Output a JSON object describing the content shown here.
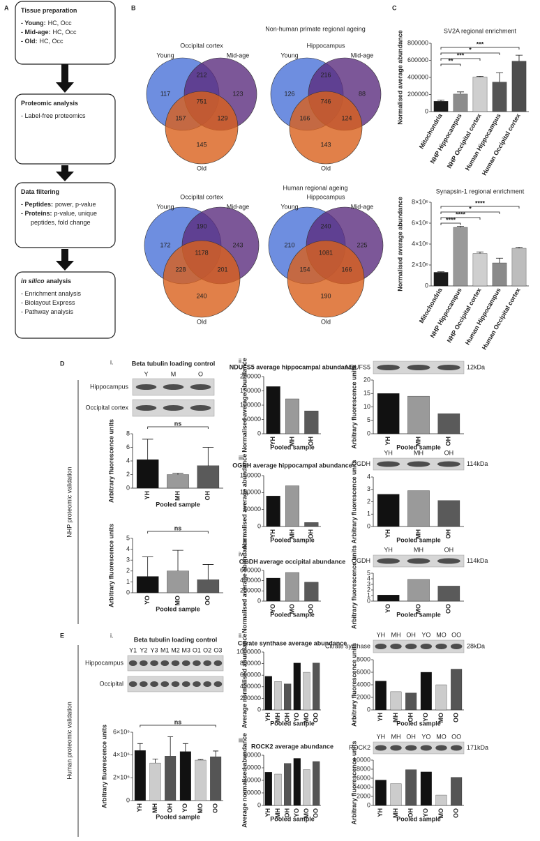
{
  "panel_a": {
    "letter": "A",
    "boxes": [
      {
        "title": "Tissue preparation",
        "items": [
          {
            "label": "- Young:",
            "lines": [
              "HC, Occ"
            ]
          },
          {
            "label": "- Mid-age:",
            "lines": [
              "HC, Occ"
            ]
          },
          {
            "label": "- Old:",
            "lines": [
              "HC, Occ"
            ]
          }
        ]
      },
      {
        "title": "Proteomic analysis",
        "items": [
          {
            "lines": [
              "- Label-free proteomics"
            ]
          }
        ]
      },
      {
        "title": "Data filtering",
        "items": [
          {
            "label": "- Peptides:",
            "lines": [
              "power, p-value"
            ]
          },
          {
            "label": "- Proteins:",
            "lines": [
              "p-value, unique",
              "peptides, fold change"
            ]
          }
        ]
      },
      {
        "title_italic": "in silico",
        "title": "analysis",
        "items": [
          {
            "lines": [
              "- Enrichment analysis"
            ]
          },
          {
            "lines": [
              "- Biolayout Express"
            ]
          },
          {
            "lines": [
              "- Pathway analysis"
            ]
          }
        ]
      }
    ]
  },
  "panel_b": {
    "letter": "B",
    "sections": [
      {
        "title": "Non-human primate regional ageing",
        "venns": [
          {
            "title": "Occipital cortex",
            "set_labels": [
              "Young",
              "Mid-age",
              "Old"
            ],
            "counts": {
              "young": 117,
              "young_mid": 212,
              "mid": 123,
              "young_mid_old": 751,
              "young_old": 157,
              "mid_old": 129,
              "old": 145
            }
          },
          {
            "title": "Hippocampus",
            "set_labels": [
              "Young",
              "Mid-age",
              "Old"
            ],
            "counts": {
              "young": 126,
              "young_mid": 216,
              "mid": 88,
              "young_mid_old": 746,
              "young_old": 166,
              "mid_old": 124,
              "old": 143
            }
          }
        ]
      },
      {
        "title": "Human regional ageing",
        "venns": [
          {
            "title": "Occipital cortex",
            "set_labels": [
              "Young",
              "Mid-age",
              "Old"
            ],
            "counts": {
              "young": 172,
              "young_mid": 190,
              "mid": 243,
              "young_mid_old": 1178,
              "young_old": 228,
              "mid_old": 201,
              "old": 240
            }
          },
          {
            "title": "Hippocampus",
            "set_labels": [
              "Young",
              "Mid-age",
              "Old"
            ],
            "counts": {
              "young": 210,
              "young_mid": 240,
              "mid": 225,
              "young_mid_old": 1081,
              "young_old": 154,
              "mid_old": 166,
              "old": 190
            }
          }
        ]
      }
    ]
  },
  "panel_c": {
    "letter": "C"
  },
  "panel_d": {
    "letter": "D",
    "side_label": "NHP proteomic validation",
    "parts": [
      {
        "numeral": "i.",
        "blot": {
          "title": "Beta tubulin loading control",
          "lanes": [
            "Y",
            "M",
            "O"
          ],
          "rows": [
            "Hippocampus",
            "Occipital cortex"
          ]
        }
      },
      {
        "numeral": "ii.",
        "blot": {
          "protein": "NDUFS5",
          "size": "12kDa"
        }
      },
      {
        "numeral": "iii.",
        "blot": {
          "protein": "OGDH",
          "size": "114kDa",
          "lanes": [
            "YH",
            "MH",
            "OH"
          ]
        }
      },
      {
        "numeral": "iv.",
        "blot": {
          "protein": "OGDH",
          "size": "114kDa",
          "lanes": [
            "YH",
            "MH",
            "OH"
          ]
        }
      }
    ]
  },
  "panel_e": {
    "letter": "E",
    "side_label": "Human proteomic validation",
    "parts": [
      {
        "numeral": "i.",
        "blot": {
          "title": "Beta tubulin loading control",
          "lanes": [
            "Y1",
            "Y2",
            "Y3",
            "M1",
            "M2",
            "M3",
            "O1",
            "O2",
            "O3"
          ],
          "rows": [
            "Hippocampus",
            "Occipital"
          ]
        }
      },
      {
        "numeral": "ii.",
        "blot": {
          "protein": "Citrate synthase",
          "size": "28kDa",
          "lanes": [
            "YH",
            "MH",
            "OH",
            "YO",
            "MO",
            "OO"
          ]
        }
      },
      {
        "numeral": "iii.",
        "blot": {
          "protein": "ROCK2",
          "size": "171kDa",
          "lanes": [
            "YH",
            "MH",
            "OH",
            "YO",
            "MO",
            "OO"
          ]
        }
      }
    ]
  },
  "chart_data": [
    {
      "type": "bar",
      "title": "SV2A regional enrichment",
      "ylabel": "Normalised average abundance",
      "categories": [
        "Mitochondria",
        "NHP Hippocampus",
        "NHP Occipital cortex",
        "Human Hippocampus",
        "Human Occipital cortex"
      ],
      "values": [
        120000,
        205000,
        405000,
        345000,
        590000
      ],
      "errors": [
        15000,
        25000,
        8000,
        110000,
        70000
      ],
      "colors": [
        "#1a1a1a",
        "#8c8c8c",
        "#cfcfcf",
        "#555555",
        "#4d4d4d"
      ],
      "ylim": [
        0,
        800000
      ],
      "yticks": [
        0,
        200000,
        400000,
        600000,
        800000
      ],
      "brackets": [
        {
          "label": "**",
          "categories": [
            "Mitochondria",
            "NHP Hippocampus"
          ]
        },
        {
          "label": "***",
          "categories": [
            "Mitochondria",
            "NHP Occipital cortex"
          ]
        },
        {
          "label": "*",
          "categories": [
            "Mitochondria",
            "Human Hippocampus"
          ]
        },
        {
          "label": "***",
          "categories": [
            "Mitochondria",
            "Human Occipital cortex"
          ]
        }
      ]
    },
    {
      "type": "bar",
      "title": "Synapsin-1 regional enrichment",
      "ylabel": "Normalised average abundance",
      "categories": [
        "Mitochondria",
        "NHP Hippocampus",
        "NHP Occipital cortex",
        "Human Hippocampus",
        "Human Occipital cortex"
      ],
      "values": [
        1300000,
        5600000,
        3100000,
        2200000,
        3600000
      ],
      "errors": [
        50000,
        100000,
        150000,
        450000,
        100000
      ],
      "colors": [
        "#1a1a1a",
        "#999999",
        "#cfcfcf",
        "#8a8a8a",
        "#bdbdbd"
      ],
      "ylim": [
        0,
        8000000
      ],
      "yticks": [
        0,
        {
          "value": 2000000,
          "label": "2×10⁶"
        },
        {
          "value": 4000000,
          "label": "4×10⁶"
        },
        {
          "value": 6000000,
          "label": "6×10⁶"
        },
        {
          "value": 8000000,
          "label": "8×10⁶"
        }
      ],
      "brackets": [
        {
          "label": "****",
          "categories": [
            "Mitochondria",
            "NHP Hippocampus"
          ]
        },
        {
          "label": "****",
          "categories": [
            "Mitochondria",
            "NHP Occipital cortex"
          ]
        },
        {
          "label": "*",
          "categories": [
            "Mitochondria",
            "Human Hippocampus"
          ]
        },
        {
          "label": "****",
          "categories": [
            "Mitochondria",
            "Human Occipital cortex"
          ]
        }
      ]
    },
    {
      "type": "bar",
      "ylabel": "Arbitrary fluorescence units",
      "xlabel": "Pooled sample",
      "categories": [
        "YH",
        "MH",
        "OH"
      ],
      "values": [
        4.2,
        2.0,
        3.3
      ],
      "errors": [
        3.0,
        0.2,
        2.7
      ],
      "colors": [
        "#111111",
        "#9a9a9a",
        "#5a5a5a"
      ],
      "ylim": [
        0,
        8
      ],
      "yticks": [
        0,
        2,
        4,
        6,
        8
      ],
      "brackets": [
        {
          "label": "ns",
          "categories": [
            "YH",
            "OH"
          ]
        }
      ]
    },
    {
      "type": "bar",
      "ylabel": "Arbitrary fluorescence units",
      "xlabel": "Pooled sample",
      "categories": [
        "YO",
        "MO",
        "OO"
      ],
      "values": [
        1.5,
        2.0,
        1.2
      ],
      "errors": [
        1.8,
        1.9,
        1.4
      ],
      "colors": [
        "#111111",
        "#9a9a9a",
        "#5a5a5a"
      ],
      "ylim": [
        0,
        5
      ],
      "yticks": [
        0,
        1,
        2,
        3,
        4,
        5
      ],
      "brackets": [
        {
          "label": "ns",
          "categories": [
            "YO",
            "OO"
          ]
        }
      ]
    },
    {
      "type": "bar",
      "title": "NDUFS5 average hippocampal abundance",
      "ylabel": "Normalised average abundance",
      "xlabel": "Pooled sample",
      "categories": [
        "YH",
        "MH",
        "OH"
      ],
      "values": [
        165000,
        122000,
        80000
      ],
      "colors": [
        "#111111",
        "#9a9a9a",
        "#5a5a5a"
      ],
      "ylim": [
        0,
        200000
      ],
      "yticks": [
        0,
        50000,
        100000,
        150000,
        200000
      ]
    },
    {
      "type": "bar",
      "ylabel": "Arbitrary fluorescence units",
      "xlabel": "Pooled sample",
      "categories": [
        "YH",
        "MH",
        "OH"
      ],
      "values": [
        15,
        14,
        7.5
      ],
      "colors": [
        "#111111",
        "#9a9a9a",
        "#5a5a5a"
      ],
      "ylim": [
        0,
        20
      ],
      "yticks": [
        0,
        5,
        10,
        15,
        20
      ]
    },
    {
      "type": "bar",
      "title": "OGDH average hippocampal abundance",
      "ylabel": "Normalised average abundance",
      "xlabel": "Pooled sample",
      "categories": [
        "YH",
        "MH",
        "OH"
      ],
      "values": [
        90000,
        120000,
        12000
      ],
      "colors": [
        "#111111",
        "#9a9a9a",
        "#5a5a5a"
      ],
      "ylim": [
        0,
        150000
      ],
      "yticks": [
        0,
        50000,
        100000,
        150000
      ]
    },
    {
      "type": "bar",
      "ylabel": "Arbitrary fluorescence units",
      "xlabel": "Pooled sample",
      "categories": [
        "YH",
        "MH",
        "OH"
      ],
      "values": [
        2.6,
        2.9,
        2.1
      ],
      "colors": [
        "#111111",
        "#9a9a9a",
        "#5a5a5a"
      ],
      "ylim": [
        0,
        4
      ],
      "yticks": [
        0,
        1,
        2,
        3,
        4
      ]
    },
    {
      "type": "bar",
      "title": "OGDH average occipital abundance",
      "ylabel": "Normalised average abundance",
      "xlabel": "Pooled sample",
      "categories": [
        "YO",
        "MO",
        "OO"
      ],
      "values": [
        450000,
        560000,
        370000
      ],
      "colors": [
        "#111111",
        "#9a9a9a",
        "#5a5a5a"
      ],
      "ylim": [
        0,
        600000
      ],
      "yticks": [
        0,
        200000,
        400000,
        600000
      ]
    },
    {
      "type": "bar",
      "ylabel": "Arbitrary fluorescence units",
      "xlabel": "Pooled sample",
      "categories": [
        "YO",
        "MO",
        "OO"
      ],
      "values": [
        1.1,
        3.9,
        2.7
      ],
      "colors": [
        "#111111",
        "#9a9a9a",
        "#5a5a5a"
      ],
      "ylim": [
        0,
        5
      ],
      "yticks": [
        0,
        1,
        2,
        3,
        4,
        5
      ]
    },
    {
      "type": "bar",
      "ylabel": "Arbitrary fluorescence units",
      "xlabel": "Pooled sample",
      "categories": [
        "YH",
        "MH",
        "OH",
        "YO",
        "MO",
        "OO"
      ],
      "values": [
        4400000,
        3300000,
        3900000,
        4300000,
        3550000,
        3850000
      ],
      "errors": [
        600000,
        350000,
        1700000,
        700000,
        50000,
        500000
      ],
      "colors": [
        "#111111",
        "#cccccc",
        "#555555",
        "#111111",
        "#cccccc",
        "#555555"
      ],
      "ylim": [
        0,
        6000000
      ],
      "yticks": [
        0,
        {
          "value": 2000000,
          "label": "2×10⁶"
        },
        {
          "value": 4000000,
          "label": "4×10⁶"
        },
        {
          "value": 6000000,
          "label": "6×10⁶"
        }
      ],
      "brackets": [
        {
          "label": "ns",
          "categories": [
            "YH",
            "OO"
          ]
        }
      ]
    },
    {
      "type": "bar",
      "title": "Citrate synthase average abundance",
      "ylabel": "Average normalised abundance",
      "xlabel": "Pooled sample",
      "categories": [
        "YH",
        "MH",
        "OH",
        "YO",
        "MO",
        "OO"
      ],
      "values": [
        580000,
        490000,
        450000,
        810000,
        650000,
        810000
      ],
      "colors": [
        "#111111",
        "#cccccc",
        "#555555",
        "#111111",
        "#cccccc",
        "#555555"
      ],
      "ylim": [
        0,
        1000000
      ],
      "yticks": [
        0,
        200000,
        400000,
        600000,
        800000,
        1000000
      ]
    },
    {
      "type": "bar",
      "ylabel": "Arbitrary fluorescence units",
      "xlabel": "Pooled sample",
      "categories": [
        "YH",
        "MH",
        "OH",
        "YO",
        "MO",
        "OO"
      ],
      "values": [
        4600,
        2900,
        2700,
        6000,
        4000,
        6500
      ],
      "colors": [
        "#111111",
        "#cccccc",
        "#555555",
        "#111111",
        "#cccccc",
        "#555555"
      ],
      "ylim": [
        0,
        8000
      ],
      "yticks": [
        0,
        2000,
        4000,
        6000,
        8000
      ]
    },
    {
      "type": "bar",
      "title": "ROCK2 average abundance",
      "ylabel": "Average normalised abundance",
      "xlabel": "Pooled sample",
      "categories": [
        "YH",
        "MH",
        "OH",
        "YO",
        "MO",
        "OO"
      ],
      "values": [
        53000,
        50000,
        67000,
        75000,
        57000,
        70000
      ],
      "colors": [
        "#111111",
        "#cccccc",
        "#555555",
        "#111111",
        "#cccccc",
        "#555555"
      ],
      "ylim": [
        0,
        80000
      ],
      "yticks": [
        0,
        20000,
        40000,
        60000,
        80000
      ]
    },
    {
      "type": "bar",
      "ylabel": "Arbitrary fluorescence units",
      "xlabel": "Pooled sample",
      "categories": [
        "YH",
        "MH",
        "OH",
        "YO",
        "MO",
        "OO"
      ],
      "values": [
        5600,
        4800,
        7900,
        7400,
        2300,
        6200
      ],
      "colors": [
        "#111111",
        "#cccccc",
        "#555555",
        "#111111",
        "#cccccc",
        "#555555"
      ],
      "ylim": [
        0,
        10000
      ],
      "yticks": [
        0,
        2000,
        4000,
        6000,
        8000,
        10000
      ]
    }
  ]
}
